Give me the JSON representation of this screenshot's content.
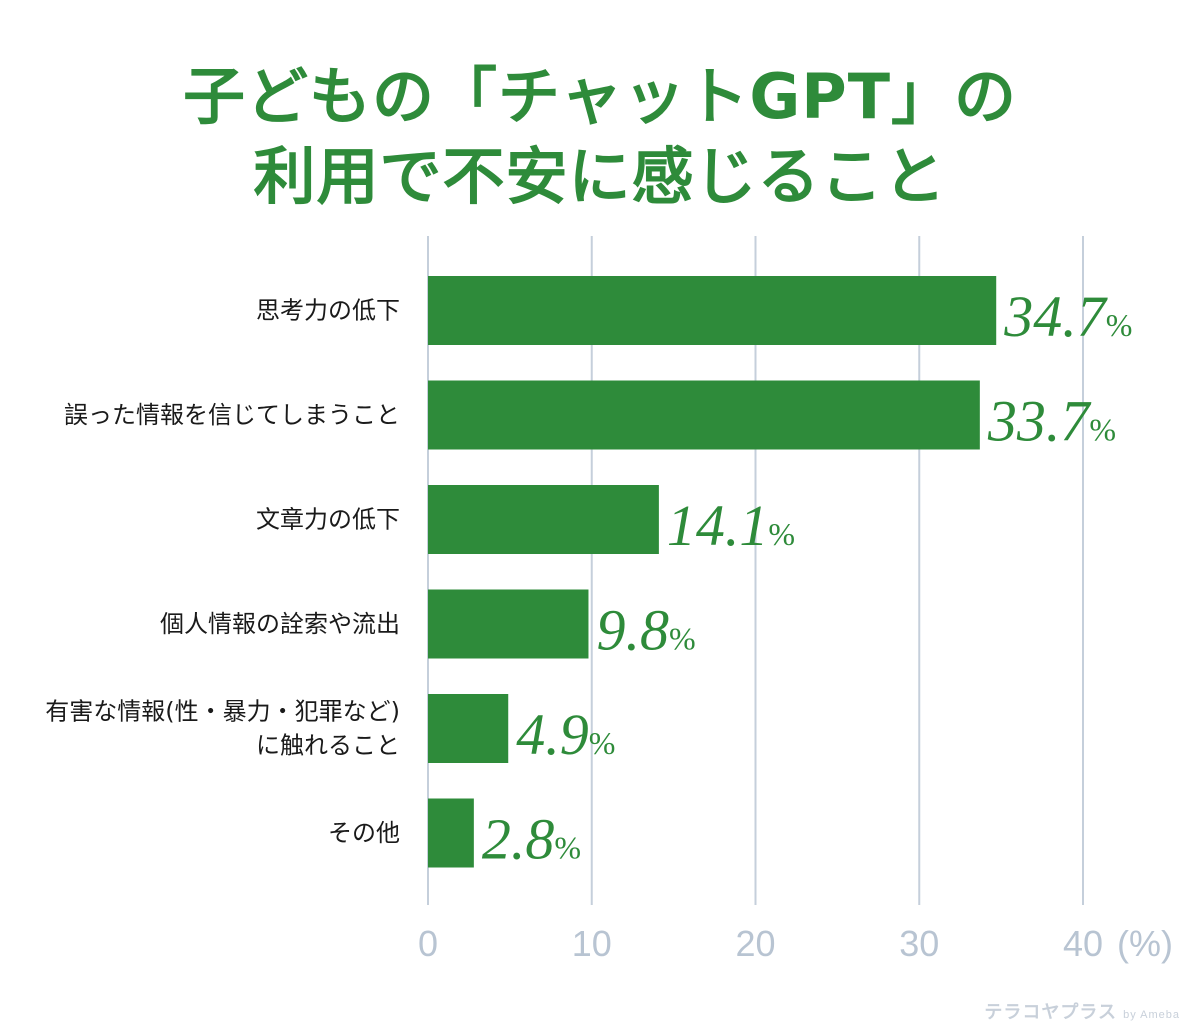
{
  "chart_data": {
    "type": "bar",
    "orientation": "horizontal",
    "title_lines": [
      "子どもの「チャットGPT」の",
      "利用で不安に感じること"
    ],
    "categories": [
      [
        "思考力の低下"
      ],
      [
        "誤った情報を信じてしまうこと"
      ],
      [
        "文章力の低下"
      ],
      [
        "個人情報の詮索や流出"
      ],
      [
        "有害な情報(性・暴力・犯罪など)",
        "に触れること"
      ],
      [
        "その他"
      ]
    ],
    "values": [
      34.7,
      33.7,
      14.1,
      9.8,
      4.9,
      2.8
    ],
    "value_labels": [
      "34.7",
      "33.7",
      "14.1",
      "9.8",
      "4.9",
      "2.8"
    ],
    "percent_sign": "%",
    "xlim": [
      0,
      40
    ],
    "xticks": [
      "0",
      "10",
      "20",
      "30",
      "40"
    ],
    "x_unit": "(%)",
    "grid": true,
    "colors": {
      "bar": "#2e8b3a",
      "label": "#2e8b3a",
      "title": "#2e8b3a",
      "grid": "#c5cfdb",
      "tick": "#b8c4d2",
      "category": "#1a1a1a"
    }
  },
  "watermark": {
    "brand": "テラコヤプラス",
    "by": "by Ameba"
  }
}
